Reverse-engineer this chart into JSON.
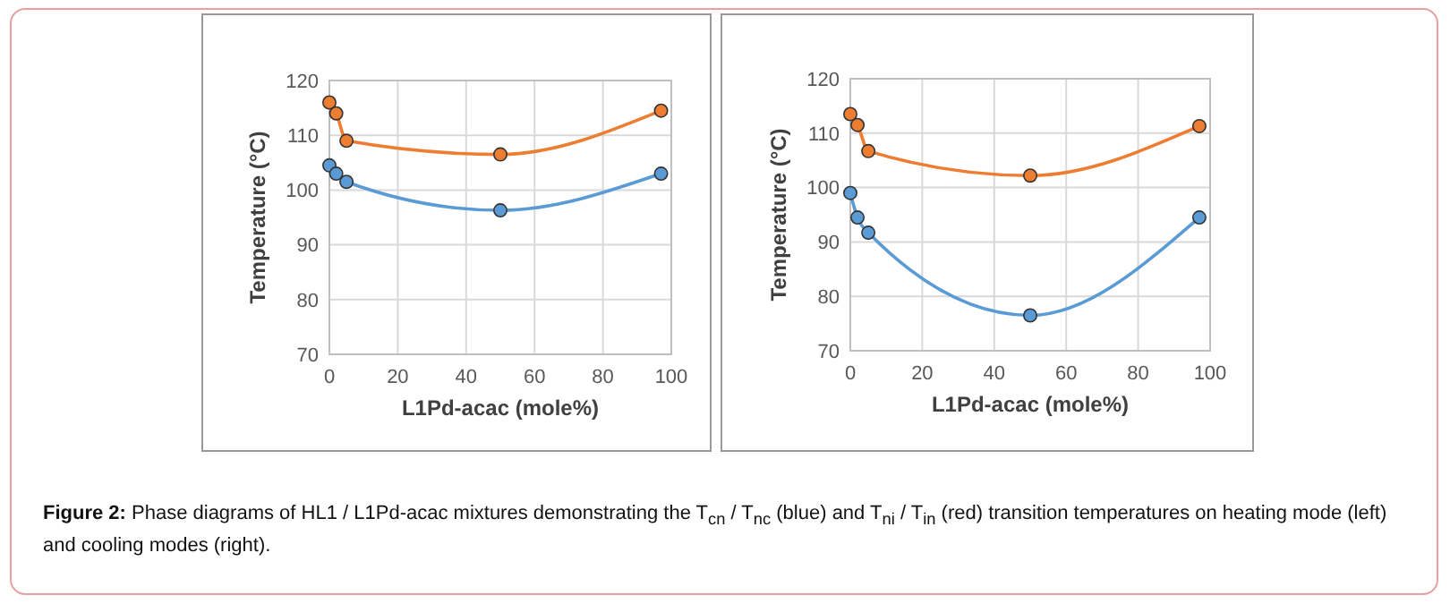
{
  "chart_data": [
    {
      "type": "line",
      "xlabel": "L1Pd-acac (mole%)",
      "ylabel": "Temperature (°C)",
      "x": [
        0,
        2,
        5,
        50,
        97
      ],
      "xlim": [
        0,
        100
      ],
      "xticks": [
        0,
        20,
        40,
        60,
        80,
        100
      ],
      "ylim": [
        70,
        120
      ],
      "yticks": [
        70,
        80,
        90,
        100,
        110,
        120
      ],
      "grid": true,
      "marker": "circle",
      "series": [
        {
          "color": "#ed7d31",
          "values": [
            116,
            114,
            109,
            106.5,
            114.5
          ]
        },
        {
          "color": "#5b9bd5",
          "values": [
            104.5,
            103,
            101.5,
            96.3,
            103
          ]
        }
      ],
      "annotations": [
        "Figure 2: Phase diagrams of HL1 / L1Pd-acac mixtures demonstrating the T$_{cn}$ / T$_{nc}$ (blue) and T$_{ni}$ / T$_{in}$ (red) transition temperatures on heating mode (left) and cooling modes (right)."
      ]
    },
    {
      "type": "line",
      "xlabel": "L1Pd-acac (mole%)",
      "ylabel": "Temperature (°C)",
      "x": [
        0,
        2,
        5,
        50,
        97
      ],
      "xlim": [
        0,
        100
      ],
      "xticks": [
        0,
        20,
        40,
        60,
        80,
        100
      ],
      "ylim": [
        70,
        120
      ],
      "yticks": [
        70,
        80,
        90,
        100,
        110,
        120
      ],
      "grid": true,
      "marker": "circle",
      "series": [
        {
          "color": "#ed7d31",
          "values": [
            113.5,
            111.5,
            106.7,
            102.2,
            111.3
          ]
        },
        {
          "color": "#5b9bd5",
          "values": [
            99,
            94.5,
            91.7,
            76.5,
            94.5
          ]
        }
      ]
    }
  ]
}
